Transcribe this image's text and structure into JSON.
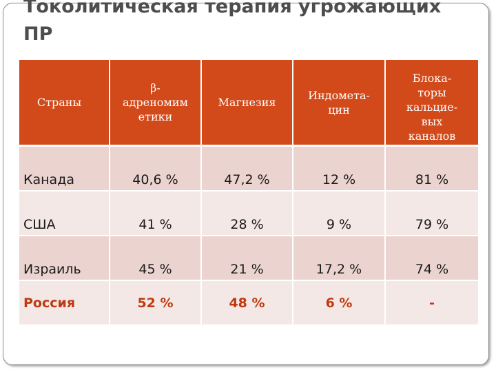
{
  "slide": {
    "title_line1": "Токолитическая терапия угрожающих",
    "title_line2": "ПР"
  },
  "table": {
    "headers": {
      "country": "Страны",
      "beta": [
        "β-",
        "адреномим",
        "етики"
      ],
      "magnesia": "Магнезия",
      "indomethacin": [
        "Индомета-",
        "цин"
      ],
      "blockers": [
        "Блока-",
        "торы",
        "кальцие-",
        "вых",
        "каналов"
      ]
    },
    "rows": [
      {
        "country": "Канада",
        "beta": "40,6 %",
        "magnesia": "47,2 %",
        "indomethacin": "12 %",
        "blockers": "81 %"
      },
      {
        "country": "США",
        "beta": "41 %",
        "magnesia": "28 %",
        "indomethacin": "9 %",
        "blockers": "79 %"
      },
      {
        "country": "Израиль",
        "beta": "45 %",
        "magnesia": "21 %",
        "indomethacin": "17,2 %",
        "blockers": "74 %"
      },
      {
        "country": "Россия",
        "beta": "52 %",
        "magnesia": "48 %",
        "indomethacin": "6 %",
        "blockers": "-"
      }
    ]
  },
  "colors": {
    "header_bg": "#d2491a",
    "row_odd": "#ebd4cf",
    "row_even": "#f4e8e6",
    "highlight_text": "#c0390f",
    "title_text": "#4d4d4d"
  }
}
